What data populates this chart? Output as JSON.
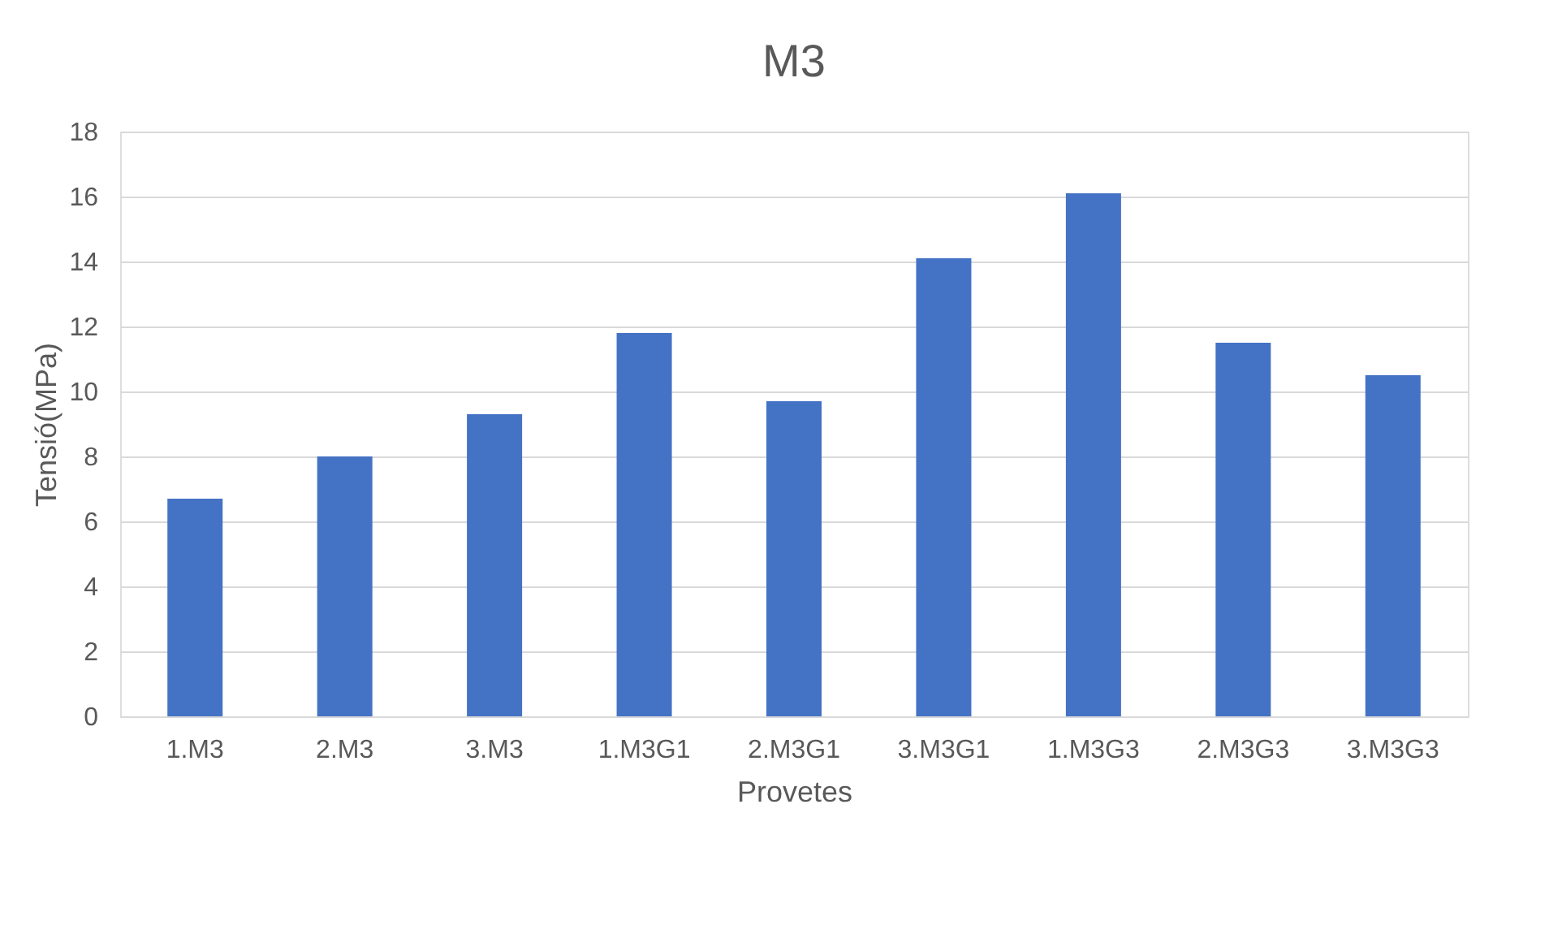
{
  "chart_data": {
    "type": "bar",
    "title": "M3",
    "xlabel": "Provetes",
    "ylabel": "Tensió(MPa)",
    "categories": [
      "1.M3",
      "2.M3",
      "3.M3",
      "1.M3G1",
      "2.M3G1",
      "3.M3G1",
      "1.M3G3",
      "2.M3G3",
      "3.M3G3"
    ],
    "values": [
      6.7,
      8.0,
      9.3,
      11.8,
      9.7,
      14.1,
      16.1,
      11.5,
      10.5
    ],
    "color": "#4472c4",
    "ylim": [
      0,
      18
    ],
    "yticks": [
      0,
      2,
      4,
      6,
      8,
      10,
      12,
      14,
      16,
      18
    ],
    "grid": "y"
  }
}
